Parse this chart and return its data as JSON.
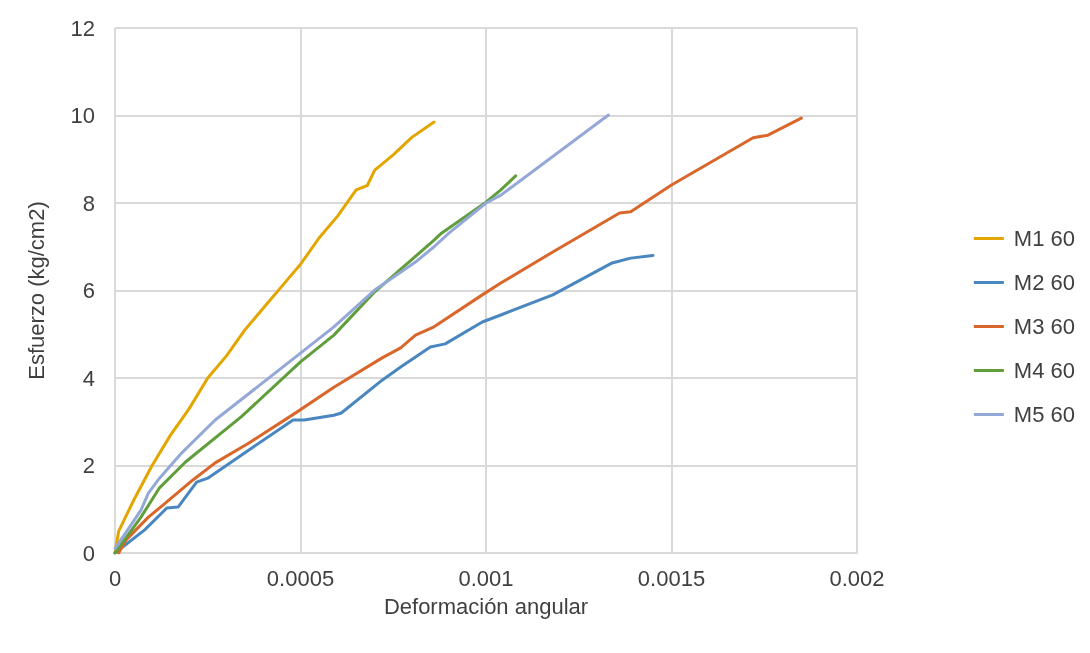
{
  "chart_data": {
    "type": "line",
    "xlabel": "Deformación angular",
    "ylabel": "Esfuerzo (kg/cm2)",
    "xlim": [
      0,
      0.002
    ],
    "xticks": [
      0,
      0.0005,
      0.001,
      0.0015,
      0.002
    ],
    "ylim": [
      0,
      12
    ],
    "yticks": [
      0,
      2,
      4,
      6,
      8,
      10,
      12
    ],
    "grid": true,
    "legend": "right",
    "marker": "none",
    "line_style": "solid",
    "series": [
      {
        "name": "M1 60",
        "color": "#e3a600",
        "x": [
          0,
          1e-05,
          5e-05,
          0.0001,
          0.00015,
          0.0002,
          0.00025,
          0.0003,
          0.00035,
          0.0004,
          0.00045,
          0.0005,
          0.00055,
          0.0006,
          0.00065,
          0.00068,
          0.0007,
          0.00075,
          0.0008,
          0.00086
        ],
        "values": [
          0,
          0.5,
          1.2,
          2.0,
          2.7,
          3.3,
          4.0,
          4.5,
          5.1,
          5.6,
          6.1,
          6.6,
          7.2,
          7.7,
          8.3,
          8.4,
          8.75,
          9.1,
          9.5,
          9.85
        ]
      },
      {
        "name": "M2 60",
        "color": "#4a86c0",
        "x": [
          0,
          8e-05,
          0.00014,
          0.00017,
          0.00022,
          0.00025,
          0.00036,
          0.00048,
          0.00051,
          0.00059,
          0.00061,
          0.00072,
          0.00077,
          0.00085,
          0.00089,
          0.00099,
          0.00104,
          0.00118,
          0.00134,
          0.00139,
          0.00145
        ],
        "values": [
          0,
          0.53,
          1.03,
          1.05,
          1.62,
          1.71,
          2.35,
          3.04,
          3.04,
          3.15,
          3.2,
          3.95,
          4.25,
          4.71,
          4.78,
          5.28,
          5.44,
          5.9,
          6.63,
          6.74,
          6.8
        ]
      },
      {
        "name": "M3 60",
        "color": "#d9672b",
        "x": [
          1e-05,
          3e-05,
          9e-05,
          0.00013,
          0.00021,
          0.00027,
          0.00036,
          0.00049,
          0.00059,
          0.00072,
          0.00077,
          0.00081,
          0.00086,
          0.00099,
          0.00104,
          0.00118,
          0.00136,
          0.00139,
          0.0015,
          0.00172,
          0.00176,
          0.00185
        ],
        "values": [
          0,
          0.3,
          0.82,
          1.1,
          1.67,
          2.06,
          2.51,
          3.22,
          3.79,
          4.46,
          4.69,
          4.98,
          5.17,
          5.9,
          6.17,
          6.88,
          7.77,
          7.8,
          8.41,
          9.49,
          9.55,
          9.94
        ]
      },
      {
        "name": "M4 60",
        "color": "#5f9e3a",
        "x": [
          0,
          7e-05,
          0.00012,
          0.00019,
          0.00034,
          0.0005,
          0.00059,
          0.0007,
          0.00086,
          0.00088,
          0.001,
          0.00104,
          0.00108
        ],
        "values": [
          0,
          0.82,
          1.49,
          2.08,
          3.11,
          4.37,
          4.98,
          5.97,
          7.15,
          7.31,
          8.02,
          8.3,
          8.62
        ]
      },
      {
        "name": "M5 60",
        "color": "#94a8d8",
        "x": [
          0,
          7e-05,
          9e-05,
          0.00012,
          0.00018,
          0.00027,
          0.0005,
          0.00059,
          0.0007,
          0.00081,
          0.00086,
          0.0009,
          0.001,
          0.00104,
          0.00133
        ],
        "values": [
          0.1,
          0.98,
          1.37,
          1.71,
          2.29,
          3.04,
          4.57,
          5.17,
          6.01,
          6.65,
          7.0,
          7.31,
          8.0,
          8.18,
          10.01
        ]
      }
    ]
  }
}
